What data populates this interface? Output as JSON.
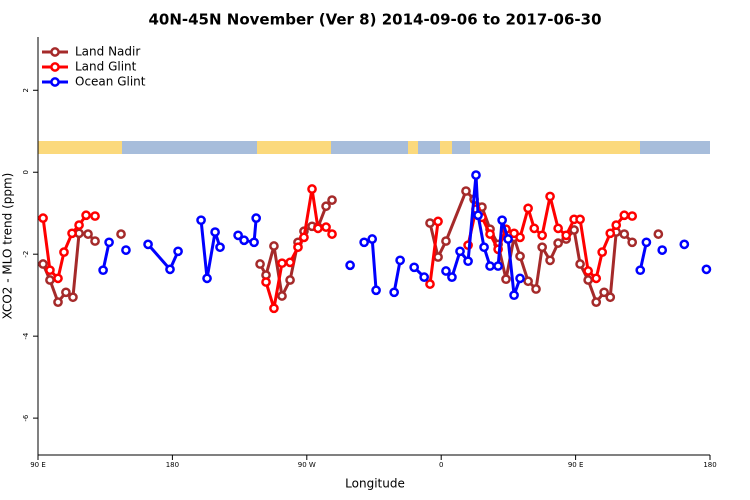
{
  "chart_data": {
    "type": "line",
    "title": "40N-45N November (Ver 8)   2014-09-06 to 2017-06-30",
    "x_label": "Longitude",
    "y_label": "XCO2 - MLO trend (ppm)",
    "xlim": [
      90,
      540
    ],
    "ylim": [
      -6.9,
      3.3
    ],
    "xticks": [
      {
        "value": 90,
        "label": "90 E"
      },
      180,
      {
        "value": 270,
        "label": "90 W"
      },
      {
        "value": 360,
        "label": "0"
      },
      {
        "value": 450,
        "label": "90 E"
      },
      {
        "value": 540,
        "label": "180"
      }
    ],
    "yticks": [
      -6,
      -4,
      -2,
      0,
      2
    ],
    "legend": "top-left",
    "series": [
      {
        "name": "Land Nadir",
        "color": "#a52a2a",
        "x": [
          93.4,
          98.0,
          103.4,
          108.7,
          113.4,
          117.5,
          123.5,
          128.2,
          null,
          145.6,
          null,
          238.7,
          242.7,
          248.0,
          253.4,
          258.8,
          264.1,
          268.1,
          273.5,
          277.5,
          282.9,
          286.9,
          null,
          352.5,
          357.9,
          363.2,
          376.6,
          382.0,
          387.3,
          392.7,
          398.1,
          403.4,
          408.8,
          412.8,
          418.2,
          423.5,
          427.6,
          432.9,
          438.3,
          443.7,
          449.0,
          453.0,
          458.4,
          463.8,
          469.1,
          473.2,
          477.2,
          482.6,
          487.9,
          null,
          505.4
        ],
        "values": [
          -2.24,
          -2.63,
          -3.17,
          -2.93,
          -3.05,
          -1.49,
          -1.51,
          -1.68,
          null,
          -1.51,
          null,
          -2.24,
          -2.51,
          -1.8,
          -3.02,
          -2.63,
          -1.71,
          -1.44,
          -1.32,
          -1.34,
          -0.83,
          -0.68,
          null,
          -1.24,
          -2.07,
          -1.68,
          -0.46,
          -0.66,
          -0.85,
          -1.39,
          -1.76,
          -2.61,
          -1.59,
          -2.05,
          -2.66,
          -2.85,
          -1.83,
          -2.15,
          -1.73,
          -1.63,
          -1.41,
          -2.24,
          -2.63,
          -3.17,
          -2.93,
          -3.05,
          -1.46,
          -1.51,
          -1.71,
          null,
          -1.51
        ]
      },
      {
        "name": "Land Glint",
        "color": "#ff0000",
        "x": [
          93.4,
          98.0,
          103.4,
          107.4,
          112.8,
          117.5,
          122.2,
          128.2,
          null,
          242.7,
          248.0,
          253.4,
          258.8,
          264.1,
          268.1,
          273.5,
          277.5,
          282.9,
          286.9,
          null,
          352.5,
          357.9,
          null,
          378.0,
          383.3,
          387.3,
          392.7,
          398.1,
          403.4,
          408.8,
          412.8,
          418.2,
          422.3,
          427.6,
          432.9,
          438.3,
          443.7,
          449.0,
          453.0,
          458.4,
          463.8,
          467.8,
          473.2,
          477.2,
          482.6,
          487.9
        ],
        "values": [
          -1.12,
          -2.39,
          -2.59,
          -1.95,
          -1.49,
          -1.29,
          -1.05,
          -1.07,
          null,
          -2.68,
          -3.32,
          -2.22,
          -2.2,
          -1.83,
          -1.59,
          -0.41,
          -1.37,
          -1.34,
          -1.51,
          null,
          -2.73,
          -1.2,
          null,
          -1.78,
          -0.9,
          -1.1,
          -1.51,
          -1.88,
          -1.39,
          -1.49,
          -1.59,
          -0.88,
          -1.37,
          -1.54,
          -0.59,
          -1.37,
          -1.54,
          -1.15,
          -1.15,
          -2.41,
          -2.59,
          -1.95,
          -1.49,
          -1.29,
          -1.05,
          -1.07
        ]
      },
      {
        "name": "Ocean Glint",
        "color": "#0000ff",
        "x": [
          133.6,
          137.6,
          null,
          148.9,
          null,
          163.7,
          178.4,
          183.8,
          null,
          199.2,
          203.2,
          208.6,
          211.9,
          null,
          224.0,
          228.0,
          234.7,
          236.1,
          null,
          299.0,
          null,
          308.4,
          313.8,
          316.4,
          null,
          328.5,
          332.5,
          null,
          341.9,
          348.6,
          null,
          363.2,
          367.2,
          372.6,
          378.0,
          383.3,
          384.7,
          388.7,
          392.7,
          398.1,
          400.8,
          404.8,
          408.8,
          412.8,
          null,
          493.3,
          497.4,
          null,
          508.0,
          null,
          522.8,
          null,
          537.6
        ],
        "values": [
          -2.39,
          -1.71,
          null,
          -1.9,
          null,
          -1.76,
          -2.37,
          -1.93,
          null,
          -1.17,
          -2.59,
          -1.46,
          -1.83,
          null,
          -1.54,
          -1.66,
          -1.71,
          -1.12,
          null,
          -2.27,
          null,
          -1.71,
          -1.63,
          -2.88,
          null,
          -2.93,
          -2.15,
          null,
          -2.32,
          -2.56,
          null,
          -2.41,
          -2.56,
          -1.93,
          -2.17,
          -0.07,
          -1.05,
          -1.83,
          -2.29,
          -2.29,
          -1.17,
          -1.63,
          -3.0,
          -2.59,
          null,
          -2.39,
          -1.71,
          null,
          -1.9,
          null,
          -1.76,
          null,
          -2.37
        ]
      }
    ]
  }
}
